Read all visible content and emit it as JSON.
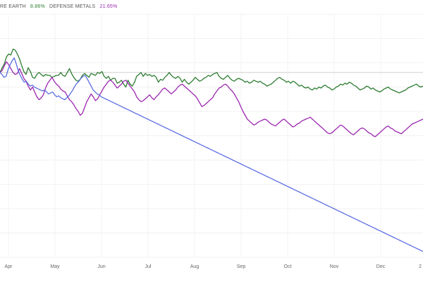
{
  "chart_data": {
    "type": "line",
    "title": "",
    "xlabel": "",
    "ylabel": "",
    "legend_position": "top-left",
    "grid": true,
    "x_tick_labels": [
      "Apr",
      "May",
      "Jun",
      "Jul",
      "Aug",
      "Sep",
      "Oct",
      "Nov",
      "Dec",
      "2"
    ],
    "reference_line": true,
    "series": [
      {
        "name": "RE EARTH",
        "display_value": "8.86%",
        "color": "#2e7d32",
        "values": [
          0,
          5,
          9,
          16,
          19,
          18,
          24,
          23,
          19,
          14,
          7,
          1,
          -2,
          5,
          1,
          -5,
          -6,
          -2,
          0,
          -2,
          -4,
          -2,
          -3,
          -3,
          -5,
          -4,
          -3,
          -3,
          0,
          -3,
          -4,
          0,
          4,
          -1,
          -5,
          -8,
          -9,
          -7,
          -3,
          -1,
          -3,
          -5,
          -1,
          -2,
          -3,
          0,
          -1,
          1,
          -4,
          -6,
          -4,
          -8,
          -6,
          -6,
          -11,
          -10,
          -8,
          -12,
          -15,
          -8,
          -12,
          -14,
          -10,
          -4,
          -2,
          0,
          -4,
          -1,
          -3,
          -2,
          -4,
          -3,
          -5,
          -10,
          -7,
          -8,
          -5,
          -3,
          0,
          -3,
          -5,
          -6,
          -4,
          -6,
          -10,
          -7,
          -10,
          -12,
          -10,
          -8,
          -5,
          -7,
          -9,
          -8,
          -6,
          -5,
          -3,
          -4,
          -2,
          -1,
          0,
          -4,
          -6,
          -7,
          -5,
          -3,
          -6,
          -8,
          -9,
          -7,
          -6,
          -7,
          -8,
          -10,
          -9,
          -11,
          -10,
          -8,
          -9,
          -10,
          -9,
          -11,
          -12,
          -14,
          -13,
          -12,
          -10,
          -8,
          -6,
          -5,
          -7,
          -8,
          -10,
          -9,
          -11,
          -9,
          -10,
          -12,
          -14,
          -13,
          -15,
          -16,
          -15,
          -17,
          -18,
          -16,
          -17,
          -15,
          -16,
          -14,
          -13,
          -15,
          -16,
          -18,
          -17,
          -15,
          -14,
          -12,
          -13,
          -11,
          -12,
          -10,
          -11,
          -13,
          -14,
          -16,
          -18,
          -17,
          -16,
          -14,
          -15,
          -17,
          -16,
          -18,
          -19,
          -20,
          -19,
          -17,
          -16,
          -15,
          -17,
          -18,
          -19,
          -20,
          -21,
          -20,
          -19,
          -18,
          -16,
          -15,
          -14,
          -13,
          -12,
          -14,
          -15,
          -14
        ]
      },
      {
        "name": "DEFENSE METALS",
        "display_value": "21.65%",
        "color": "#9c27b0",
        "values": [
          0,
          2,
          7,
          11,
          8,
          4,
          0,
          -2,
          -1,
          4,
          -1,
          -6,
          -9,
          -14,
          -18,
          -15,
          -20,
          -25,
          -28,
          -26,
          -23,
          -16,
          -11,
          -8,
          -5,
          -9,
          -12,
          -14,
          -17,
          -19,
          -20,
          -24,
          -28,
          -30,
          -33,
          -37,
          -40,
          -44,
          -42,
          -36,
          -30,
          -26,
          -22,
          -25,
          -29,
          -27,
          -23,
          -19,
          -15,
          -12,
          -9,
          -8,
          -10,
          -13,
          -16,
          -14,
          -12,
          -9,
          -8,
          -11,
          -14,
          -17,
          -20,
          -25,
          -28,
          -30,
          -29,
          -27,
          -25,
          -23,
          -26,
          -28,
          -25,
          -23,
          -20,
          -17,
          -16,
          -18,
          -20,
          -22,
          -20,
          -18,
          -15,
          -13,
          -12,
          -14,
          -16,
          -18,
          -20,
          -22,
          -24,
          -27,
          -31,
          -35,
          -34,
          -32,
          -30,
          -28,
          -26,
          -22,
          -19,
          -16,
          -15,
          -13,
          -12,
          -14,
          -17,
          -19,
          -22,
          -26,
          -30,
          -35,
          -40,
          -44,
          -48,
          -50,
          -52,
          -54,
          -53,
          -51,
          -50,
          -49,
          -48,
          -49,
          -51,
          -53,
          -54,
          -55,
          -53,
          -51,
          -49,
          -48,
          -50,
          -52,
          -54,
          -56,
          -55,
          -53,
          -52,
          -50,
          -49,
          -48,
          -47,
          -46,
          -48,
          -50,
          -52,
          -54,
          -56,
          -58,
          -60,
          -62,
          -63,
          -62,
          -60,
          -58,
          -56,
          -54,
          -55,
          -57,
          -59,
          -61,
          -63,
          -64,
          -62,
          -60,
          -58,
          -57,
          -58,
          -60,
          -62,
          -63,
          -65,
          -66,
          -64,
          -62,
          -60,
          -58,
          -56,
          -55,
          -57,
          -58,
          -60,
          -61,
          -62,
          -63,
          -61,
          -59,
          -57,
          -55,
          -53,
          -52,
          -51,
          -50,
          -49,
          -48
        ]
      },
      {
        "name": "",
        "color": "#5b6ee1",
        "values": [
          0,
          -2,
          -5,
          -4,
          3,
          8,
          12,
          15,
          9,
          2,
          -3,
          -7,
          -10,
          -9,
          -12,
          -14,
          -13,
          -15,
          -16,
          -17,
          -18,
          -19,
          -18,
          -20,
          -22,
          -21,
          -20,
          -23,
          -25,
          -24,
          -26,
          -27,
          -28,
          -26,
          -24,
          -21,
          -18,
          -14,
          -11,
          -9,
          -6,
          -4,
          -3,
          -6,
          -10,
          -14,
          -18,
          -20,
          -22,
          -23,
          -25,
          -26,
          -27,
          -28,
          -29,
          -30,
          -31,
          -32,
          -33,
          -34,
          -35,
          -36,
          -37,
          -38,
          -39,
          -40,
          -41,
          -42,
          -43,
          -44,
          -45,
          -46,
          -47,
          -48,
          -49,
          -50,
          -51,
          -52,
          -53,
          -54,
          -55,
          -56,
          -57,
          -58,
          -59,
          -60,
          -61,
          -62,
          -63,
          -64,
          -65,
          -66,
          -67,
          -68,
          -69,
          -70,
          -71,
          -72,
          -73,
          -74,
          -75,
          -76,
          -77,
          -78,
          -79,
          -80,
          -81,
          -82,
          -83,
          -84,
          -85,
          -86,
          -87,
          -88,
          -89,
          -90,
          -91,
          -92,
          -93,
          -94,
          -95,
          -96,
          -97,
          -98,
          -99,
          -100,
          -101,
          -102,
          -103,
          -104,
          -105,
          -106,
          -107,
          -108,
          -109,
          -110,
          -111,
          -112,
          -113,
          -114,
          -115,
          -116,
          -117,
          -118,
          -119,
          -120,
          -121,
          -122,
          -123,
          -124,
          -125,
          -126,
          -127,
          -128,
          -129,
          -130,
          -131,
          -132,
          -133,
          -134,
          -135,
          -136,
          -137,
          -138,
          -139,
          -140,
          -141,
          -142,
          -143,
          -144,
          -145,
          -146,
          -147,
          -148,
          -149,
          -150,
          -151,
          -152,
          -153,
          -154,
          -155,
          -156,
          -157,
          -158,
          -159,
          -160,
          -161,
          -162,
          -163,
          -164,
          -165,
          -166,
          -167,
          -168,
          -169,
          -170,
          -171,
          -172,
          -173,
          -174,
          -175,
          -176,
          -177,
          -178,
          -179,
          -180,
          -181,
          -182,
          -183,
          -184
        ]
      }
    ],
    "ylim": [
      -190,
      60
    ]
  }
}
